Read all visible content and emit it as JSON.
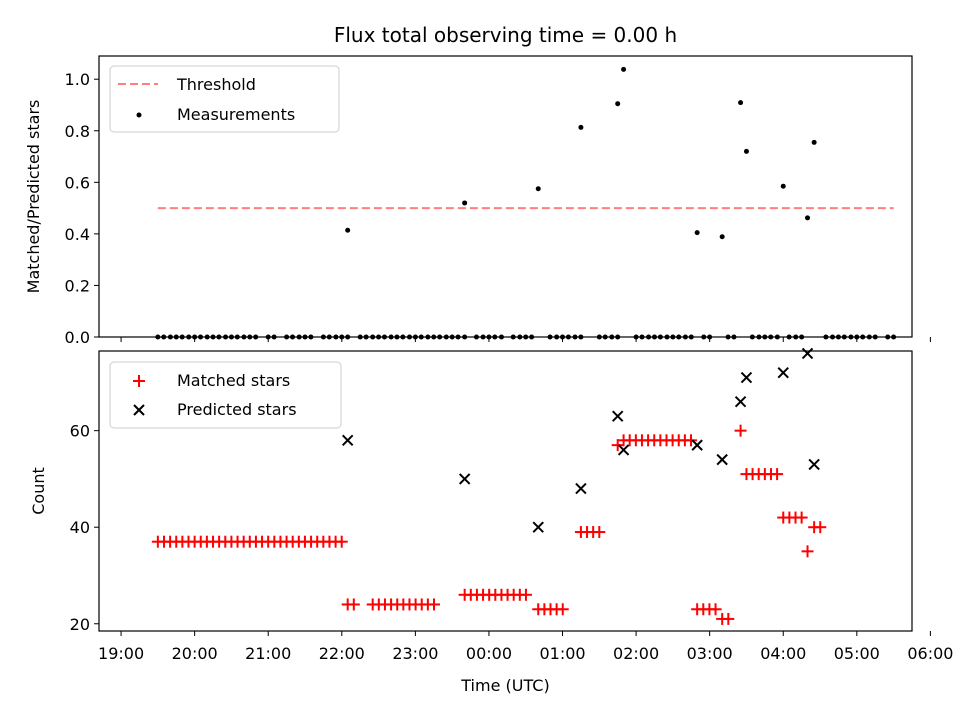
{
  "chart_data": [
    {
      "type": "scatter",
      "title": "Flux total observing time = 0.00 h",
      "ylabel": "Matched/Predicted stars",
      "xlabel": "",
      "xlim": [
        -0.3,
        10.75
      ],
      "ylim": [
        0,
        1.09
      ],
      "yticks": [
        0.0,
        0.2,
        0.4,
        0.6,
        0.8,
        1.0
      ],
      "ytick_labels": [
        "0.0",
        "0.2",
        "0.4",
        "0.6",
        "0.8",
        "1.0"
      ],
      "legend_position": "top-left",
      "grid": false,
      "threshold": {
        "name": "Threshold",
        "y": 0.5,
        "x_range": [
          0.5,
          10.5
        ],
        "color": "#ff7f7f",
        "style": "dashed"
      },
      "series": [
        {
          "name": "Measurements",
          "color": "#000000",
          "marker": "dot",
          "nonzero_points": [
            [
              3.08,
              0.414
            ],
            [
              4.67,
              0.52
            ],
            [
              5.67,
              0.575
            ],
            [
              6.25,
              0.813
            ],
            [
              6.75,
              0.905
            ],
            [
              6.83,
              1.038
            ],
            [
              7.83,
              0.405
            ],
            [
              8.17,
              0.389
            ],
            [
              8.42,
              0.909
            ],
            [
              8.5,
              0.72
            ],
            [
              9.0,
              0.585
            ],
            [
              9.33,
              0.462
            ],
            [
              9.42,
              0.755
            ]
          ],
          "zero_x": [
            0.5,
            0.58,
            0.67,
            0.75,
            0.83,
            0.92,
            1.0,
            1.08,
            1.17,
            1.25,
            1.33,
            1.42,
            1.5,
            1.58,
            1.67,
            1.75,
            1.83,
            2.0,
            2.08,
            2.25,
            2.33,
            2.42,
            2.5,
            2.58,
            2.75,
            2.83,
            2.92,
            3.0,
            3.08,
            3.25,
            3.33,
            3.42,
            3.5,
            3.58,
            3.67,
            3.75,
            3.83,
            3.92,
            4.0,
            4.08,
            4.17,
            4.25,
            4.33,
            4.42,
            4.5,
            4.58,
            4.67,
            4.83,
            4.92,
            5.0,
            5.08,
            5.17,
            5.33,
            5.42,
            5.5,
            5.58,
            5.83,
            5.92,
            6.0,
            6.08,
            6.17,
            6.25,
            6.5,
            6.58,
            6.67,
            6.75,
            7.0,
            7.08,
            7.17,
            7.25,
            7.33,
            7.42,
            7.5,
            7.58,
            7.67,
            7.75,
            7.92,
            8.0,
            8.25,
            8.33,
            8.58,
            8.67,
            8.75,
            8.83,
            8.92,
            9.08,
            9.17,
            9.25,
            9.58,
            9.67,
            9.75,
            9.83,
            9.92,
            10.0,
            10.08,
            10.17,
            10.25,
            10.42,
            10.5
          ]
        }
      ]
    },
    {
      "type": "scatter",
      "title": "",
      "ylabel": "Count",
      "xlabel": "Time (UTC)",
      "xlim": [
        -0.3,
        10.75
      ],
      "ylim": [
        18.5,
        76.5
      ],
      "xticks": [
        0,
        1,
        2,
        3,
        4,
        5,
        6,
        7,
        8,
        9,
        10,
        11
      ],
      "xtick_labels": [
        "19:00",
        "20:00",
        "21:00",
        "22:00",
        "23:00",
        "00:00",
        "01:00",
        "02:00",
        "03:00",
        "04:00",
        "05:00",
        "06:00"
      ],
      "yticks": [
        20,
        40,
        60
      ],
      "ytick_labels": [
        "20",
        "40",
        "60"
      ],
      "legend_position": "top-left",
      "grid": false,
      "series": [
        {
          "name": "Matched stars",
          "color": "#ff0000",
          "marker": "plus",
          "groups": [
            {
              "x_from": 0.5,
              "x_to": 3.0,
              "step": 0.0833,
              "y": 37
            },
            {
              "x_from": 3.08,
              "x_to": 3.17,
              "step": 0.0833,
              "y": 24
            },
            {
              "x_from": 3.42,
              "x_to": 4.33,
              "step": 0.0833,
              "y": 24
            },
            {
              "x_from": 4.67,
              "x_to": 5.58,
              "step": 0.0833,
              "y": 26
            },
            {
              "x_from": 5.67,
              "x_to": 6.08,
              "step": 0.0833,
              "y": 23
            },
            {
              "x_from": 6.25,
              "x_to": 6.58,
              "step": 0.0833,
              "y": 39
            },
            {
              "x_from": 6.75,
              "x_to": 6.75,
              "step": 0.0833,
              "y": 57
            },
            {
              "x_from": 6.83,
              "x_to": 7.75,
              "step": 0.0833,
              "y": 58
            },
            {
              "x_from": 7.83,
              "x_to": 8.08,
              "step": 0.0833,
              "y": 23
            },
            {
              "x_from": 8.17,
              "x_to": 8.33,
              "step": 0.0833,
              "y": 21
            },
            {
              "x_from": 8.42,
              "x_to": 8.42,
              "step": 0.0833,
              "y": 60
            },
            {
              "x_from": 8.5,
              "x_to": 8.92,
              "step": 0.0833,
              "y": 51
            },
            {
              "x_from": 9.0,
              "x_to": 9.25,
              "step": 0.0833,
              "y": 42
            },
            {
              "x_from": 9.33,
              "x_to": 9.33,
              "step": 0.0833,
              "y": 35
            },
            {
              "x_from": 9.42,
              "x_to": 9.58,
              "step": 0.0833,
              "y": 40
            }
          ]
        },
        {
          "name": "Predicted stars",
          "color": "#000000",
          "marker": "x",
          "points": [
            [
              3.08,
              58
            ],
            [
              4.67,
              50
            ],
            [
              5.67,
              40
            ],
            [
              6.25,
              48
            ],
            [
              6.75,
              63
            ],
            [
              6.83,
              56
            ],
            [
              7.83,
              57
            ],
            [
              8.17,
              54
            ],
            [
              8.42,
              66
            ],
            [
              8.5,
              71
            ],
            [
              9.0,
              72
            ],
            [
              9.33,
              76
            ],
            [
              9.42,
              53
            ]
          ]
        }
      ]
    }
  ]
}
